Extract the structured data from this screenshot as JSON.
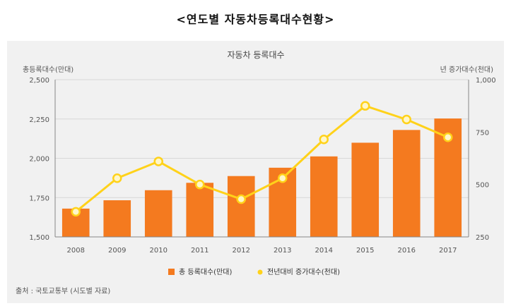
{
  "page_title": "<연도별 자동차등록대수현황>",
  "source": "출처 : 국토교통부 (시도별 자료)",
  "colors": {
    "bar": "#f47a1f",
    "line": "#ffd21a",
    "marker_fill": "#fff7c8",
    "grid": "#d8d8d8",
    "axis": "#888888"
  },
  "chart_data": {
    "type": "bar",
    "title": "자동차 등록대수",
    "categories": [
      "2008",
      "2009",
      "2010",
      "2011",
      "2012",
      "2013",
      "2014",
      "2015",
      "2016",
      "2017"
    ],
    "left_axis": {
      "label": "총등록대수(만대)",
      "ticks": [
        "2,500",
        "2,250",
        "2,000",
        "1,750",
        "1,500"
      ],
      "ylim": [
        1500,
        2500
      ]
    },
    "right_axis": {
      "label": "년 증가대수(천대)",
      "ticks": [
        "1,000",
        "750",
        "500",
        "250"
      ],
      "ylim": [
        250,
        1000
      ]
    },
    "series": [
      {
        "name": "총 등록대수(만대)",
        "type": "bar",
        "axis": "left",
        "values": [
          1680,
          1733,
          1797,
          1844,
          1887,
          1940,
          2012,
          2099,
          2180,
          2253
        ]
      },
      {
        "name": "전년대비 증가대수(천대)",
        "type": "line",
        "axis": "right",
        "values": [
          370,
          530,
          610,
          500,
          430,
          530,
          715,
          875,
          810,
          725
        ]
      }
    ],
    "grid": true,
    "legend_position": "bottom"
  }
}
